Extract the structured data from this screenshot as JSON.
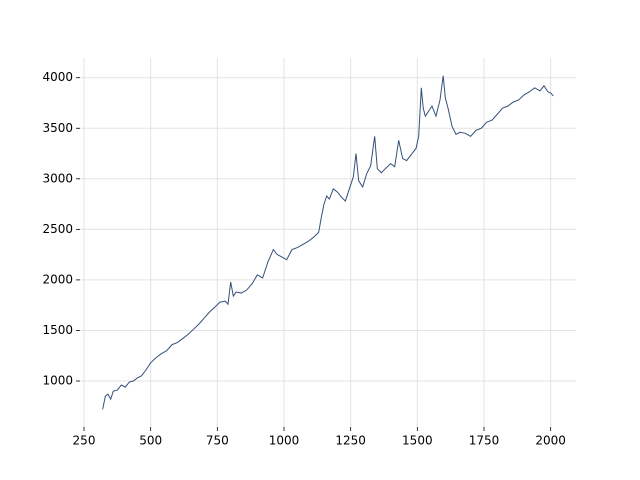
{
  "chart_data": {
    "type": "line",
    "x": [
      320,
      330,
      340,
      350,
      360,
      375,
      390,
      405,
      420,
      435,
      450,
      465,
      480,
      500,
      520,
      540,
      560,
      580,
      600,
      620,
      640,
      660,
      680,
      700,
      720,
      740,
      760,
      780,
      790,
      800,
      810,
      820,
      840,
      860,
      880,
      900,
      920,
      940,
      960,
      975,
      990,
      1010,
      1030,
      1050,
      1070,
      1090,
      1110,
      1130,
      1140,
      1150,
      1160,
      1170,
      1185,
      1200,
      1215,
      1230,
      1245,
      1260,
      1270,
      1280,
      1295,
      1310,
      1325,
      1340,
      1350,
      1365,
      1380,
      1400,
      1415,
      1430,
      1445,
      1460,
      1480,
      1495,
      1505,
      1515,
      1522,
      1530,
      1540,
      1555,
      1570,
      1585,
      1597,
      1605,
      1615,
      1630,
      1645,
      1660,
      1680,
      1700,
      1720,
      1740,
      1760,
      1780,
      1800,
      1820,
      1840,
      1860,
      1880,
      1900,
      1920,
      1940,
      1960,
      1975,
      1990,
      2000,
      2010
    ],
    "series": [
      {
        "color": "#34507a",
        "values": [
          720,
          850,
          870,
          820,
          900,
          910,
          960,
          940,
          990,
          1000,
          1030,
          1050,
          1100,
          1180,
          1230,
          1270,
          1300,
          1360,
          1380,
          1420,
          1460,
          1510,
          1560,
          1620,
          1680,
          1730,
          1780,
          1790,
          1760,
          1980,
          1840,
          1880,
          1870,
          1900,
          1960,
          2050,
          2020,
          2180,
          2300,
          2250,
          2230,
          2200,
          2300,
          2320,
          2350,
          2380,
          2420,
          2470,
          2620,
          2750,
          2830,
          2800,
          2900,
          2870,
          2820,
          2780,
          2900,
          3020,
          3250,
          2980,
          2920,
          3050,
          3130,
          3420,
          3100,
          3060,
          3100,
          3150,
          3120,
          3380,
          3200,
          3180,
          3250,
          3300,
          3420,
          3900,
          3700,
          3620,
          3660,
          3720,
          3620,
          3780,
          4020,
          3800,
          3700,
          3520,
          3440,
          3460,
          3450,
          3420,
          3480,
          3500,
          3560,
          3580,
          3640,
          3700,
          3720,
          3760,
          3780,
          3830,
          3860,
          3900,
          3870,
          3920,
          3860,
          3850,
          3820
        ]
      }
    ],
    "xlim": [
      235,
      2095
    ],
    "ylim": [
      545,
      4195
    ],
    "xticks": [
      250,
      500,
      750,
      1000,
      1250,
      1500,
      1750,
      2000
    ],
    "yticks": [
      1000,
      1500,
      2000,
      2500,
      3000,
      3500,
      4000
    ],
    "grid": true
  }
}
